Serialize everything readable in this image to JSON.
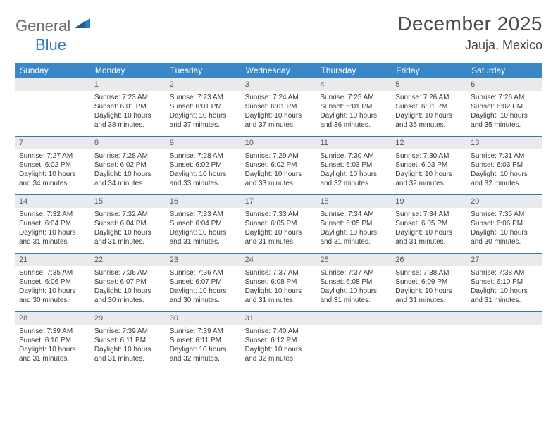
{
  "logo": {
    "gen": "General",
    "blue": "Blue"
  },
  "title": "December 2025",
  "location": "Jauja, Mexico",
  "weekdays": [
    "Sunday",
    "Monday",
    "Tuesday",
    "Wednesday",
    "Thursday",
    "Friday",
    "Saturday"
  ],
  "colors": {
    "header_bg": "#3a87c7",
    "border": "#2f7abf",
    "daynum_bg": "#e8eaec",
    "text": "#3a3a3a",
    "logo_gray": "#6e6e6e",
    "logo_blue": "#2f7abf"
  },
  "weeks": [
    [
      {
        "n": "",
        "empty": true
      },
      {
        "n": "1",
        "sr": "Sunrise: 7:23 AM",
        "ss": "Sunset: 6:01 PM",
        "dl": "Daylight: 10 hours and 38 minutes."
      },
      {
        "n": "2",
        "sr": "Sunrise: 7:23 AM",
        "ss": "Sunset: 6:01 PM",
        "dl": "Daylight: 10 hours and 37 minutes."
      },
      {
        "n": "3",
        "sr": "Sunrise: 7:24 AM",
        "ss": "Sunset: 6:01 PM",
        "dl": "Daylight: 10 hours and 37 minutes."
      },
      {
        "n": "4",
        "sr": "Sunrise: 7:25 AM",
        "ss": "Sunset: 6:01 PM",
        "dl": "Daylight: 10 hours and 36 minutes."
      },
      {
        "n": "5",
        "sr": "Sunrise: 7:26 AM",
        "ss": "Sunset: 6:01 PM",
        "dl": "Daylight: 10 hours and 35 minutes."
      },
      {
        "n": "6",
        "sr": "Sunrise: 7:26 AM",
        "ss": "Sunset: 6:02 PM",
        "dl": "Daylight: 10 hours and 35 minutes."
      }
    ],
    [
      {
        "n": "7",
        "sr": "Sunrise: 7:27 AM",
        "ss": "Sunset: 6:02 PM",
        "dl": "Daylight: 10 hours and 34 minutes."
      },
      {
        "n": "8",
        "sr": "Sunrise: 7:28 AM",
        "ss": "Sunset: 6:02 PM",
        "dl": "Daylight: 10 hours and 34 minutes."
      },
      {
        "n": "9",
        "sr": "Sunrise: 7:28 AM",
        "ss": "Sunset: 6:02 PM",
        "dl": "Daylight: 10 hours and 33 minutes."
      },
      {
        "n": "10",
        "sr": "Sunrise: 7:29 AM",
        "ss": "Sunset: 6:02 PM",
        "dl": "Daylight: 10 hours and 33 minutes."
      },
      {
        "n": "11",
        "sr": "Sunrise: 7:30 AM",
        "ss": "Sunset: 6:03 PM",
        "dl": "Daylight: 10 hours and 32 minutes."
      },
      {
        "n": "12",
        "sr": "Sunrise: 7:30 AM",
        "ss": "Sunset: 6:03 PM",
        "dl": "Daylight: 10 hours and 32 minutes."
      },
      {
        "n": "13",
        "sr": "Sunrise: 7:31 AM",
        "ss": "Sunset: 6:03 PM",
        "dl": "Daylight: 10 hours and 32 minutes."
      }
    ],
    [
      {
        "n": "14",
        "sr": "Sunrise: 7:32 AM",
        "ss": "Sunset: 6:04 PM",
        "dl": "Daylight: 10 hours and 31 minutes."
      },
      {
        "n": "15",
        "sr": "Sunrise: 7:32 AM",
        "ss": "Sunset: 6:04 PM",
        "dl": "Daylight: 10 hours and 31 minutes."
      },
      {
        "n": "16",
        "sr": "Sunrise: 7:33 AM",
        "ss": "Sunset: 6:04 PM",
        "dl": "Daylight: 10 hours and 31 minutes."
      },
      {
        "n": "17",
        "sr": "Sunrise: 7:33 AM",
        "ss": "Sunset: 6:05 PM",
        "dl": "Daylight: 10 hours and 31 minutes."
      },
      {
        "n": "18",
        "sr": "Sunrise: 7:34 AM",
        "ss": "Sunset: 6:05 PM",
        "dl": "Daylight: 10 hours and 31 minutes."
      },
      {
        "n": "19",
        "sr": "Sunrise: 7:34 AM",
        "ss": "Sunset: 6:05 PM",
        "dl": "Daylight: 10 hours and 31 minutes."
      },
      {
        "n": "20",
        "sr": "Sunrise: 7:35 AM",
        "ss": "Sunset: 6:06 PM",
        "dl": "Daylight: 10 hours and 30 minutes."
      }
    ],
    [
      {
        "n": "21",
        "sr": "Sunrise: 7:35 AM",
        "ss": "Sunset: 6:06 PM",
        "dl": "Daylight: 10 hours and 30 minutes."
      },
      {
        "n": "22",
        "sr": "Sunrise: 7:36 AM",
        "ss": "Sunset: 6:07 PM",
        "dl": "Daylight: 10 hours and 30 minutes."
      },
      {
        "n": "23",
        "sr": "Sunrise: 7:36 AM",
        "ss": "Sunset: 6:07 PM",
        "dl": "Daylight: 10 hours and 30 minutes."
      },
      {
        "n": "24",
        "sr": "Sunrise: 7:37 AM",
        "ss": "Sunset: 6:08 PM",
        "dl": "Daylight: 10 hours and 31 minutes."
      },
      {
        "n": "25",
        "sr": "Sunrise: 7:37 AM",
        "ss": "Sunset: 6:08 PM",
        "dl": "Daylight: 10 hours and 31 minutes."
      },
      {
        "n": "26",
        "sr": "Sunrise: 7:38 AM",
        "ss": "Sunset: 6:09 PM",
        "dl": "Daylight: 10 hours and 31 minutes."
      },
      {
        "n": "27",
        "sr": "Sunrise: 7:38 AM",
        "ss": "Sunset: 6:10 PM",
        "dl": "Daylight: 10 hours and 31 minutes."
      }
    ],
    [
      {
        "n": "28",
        "sr": "Sunrise: 7:39 AM",
        "ss": "Sunset: 6:10 PM",
        "dl": "Daylight: 10 hours and 31 minutes."
      },
      {
        "n": "29",
        "sr": "Sunrise: 7:39 AM",
        "ss": "Sunset: 6:11 PM",
        "dl": "Daylight: 10 hours and 31 minutes."
      },
      {
        "n": "30",
        "sr": "Sunrise: 7:39 AM",
        "ss": "Sunset: 6:11 PM",
        "dl": "Daylight: 10 hours and 32 minutes."
      },
      {
        "n": "31",
        "sr": "Sunrise: 7:40 AM",
        "ss": "Sunset: 6:12 PM",
        "dl": "Daylight: 10 hours and 32 minutes."
      },
      {
        "n": "",
        "empty": true
      },
      {
        "n": "",
        "empty": true
      },
      {
        "n": "",
        "empty": true
      }
    ]
  ]
}
